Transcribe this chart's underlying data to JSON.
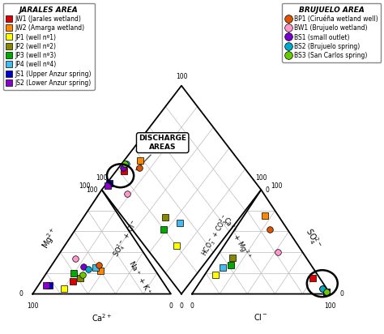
{
  "grid_color": "#bbbbbb",
  "samples": {
    "JW1": {
      "ca": 65,
      "mg": 12,
      "cl": 80,
      "so4": 15,
      "color": "#dd0000",
      "marker": "s"
    },
    "JW2": {
      "ca": 40,
      "mg": 22,
      "cl": 15,
      "so4": 75,
      "color": "#ff8800",
      "marker": "s"
    },
    "JP1": {
      "ca": 75,
      "mg": 5,
      "cl": 8,
      "so4": 18,
      "color": "#ffff00",
      "marker": "s"
    },
    "JP2": {
      "ca": 58,
      "mg": 15,
      "cl": 12,
      "so4": 35,
      "color": "#888800",
      "marker": "s"
    },
    "JP3": {
      "ca": 60,
      "mg": 20,
      "cl": 14,
      "so4": 28,
      "color": "#00aa00",
      "marker": "s"
    },
    "JP4": {
      "ca": 42,
      "mg": 25,
      "cl": 10,
      "so4": 25,
      "color": "#44bbee",
      "marker": "s"
    },
    "JS1": {
      "ca": 84,
      "mg": 8,
      "cl": 96,
      "so4": 2,
      "color": "#0000cc",
      "marker": "s"
    },
    "JS2": {
      "ca": 86,
      "mg": 8,
      "cl": 96,
      "so4": 2,
      "color": "#8800cc",
      "marker": "s"
    },
    "BP1": {
      "ca": 38,
      "mg": 28,
      "cl": 25,
      "so4": 62,
      "color": "#dd5500",
      "marker": "o"
    },
    "BW1": {
      "ca": 52,
      "mg": 34,
      "cl": 42,
      "so4": 40,
      "color": "#ff99cc",
      "marker": "o"
    },
    "BS1": {
      "ca": 50,
      "mg": 26,
      "cl": 92,
      "so4": 5,
      "color": "#7700cc",
      "marker": "o"
    },
    "BS2": {
      "ca": 48,
      "mg": 24,
      "cl": 92,
      "so4": 5,
      "color": "#00aacc",
      "marker": "o"
    },
    "BS3": {
      "ca": 55,
      "mg": 18,
      "cl": 96,
      "so4": 2,
      "color": "#66cc00",
      "marker": "o"
    }
  },
  "left_legend_title": "JARALES AREA",
  "left_legend": [
    {
      "label": "JW1 (Jarales wetland)",
      "color": "#dd0000",
      "marker": "s"
    },
    {
      "label": "JW2 (Amarga wetland)",
      "color": "#ff8800",
      "marker": "s"
    },
    {
      "label": "JP1 (well nº1)",
      "color": "#ffff00",
      "marker": "s"
    },
    {
      "label": "JP2 (well nº2)",
      "color": "#888800",
      "marker": "s"
    },
    {
      "label": "JP3 (well nº3)",
      "color": "#00aa00",
      "marker": "s"
    },
    {
      "label": "JP4 (well nº4)",
      "color": "#44bbee",
      "marker": "s"
    },
    {
      "label": "JS1 (Upper Anzur spring)",
      "color": "#0000cc",
      "marker": "s"
    },
    {
      "label": "JS2 (Lower Anzur spring)",
      "color": "#8800cc",
      "marker": "s"
    }
  ],
  "right_legend_title": "BRUJUELO AREA",
  "right_legend": [
    {
      "label": "BP1 (Ciruéña wetland well)",
      "color": "#dd5500",
      "marker": "o"
    },
    {
      "label": "BW1 (Brujuelo wetland)",
      "color": "#ff99cc",
      "marker": "o"
    },
    {
      "label": "BS1 (small outlet)",
      "color": "#7700cc",
      "marker": "o"
    },
    {
      "label": "BS2 (Brujuelo spring)",
      "color": "#00aacc",
      "marker": "o"
    },
    {
      "label": "BS3 (San Carlos spring)",
      "color": "#66cc00",
      "marker": "o"
    }
  ]
}
